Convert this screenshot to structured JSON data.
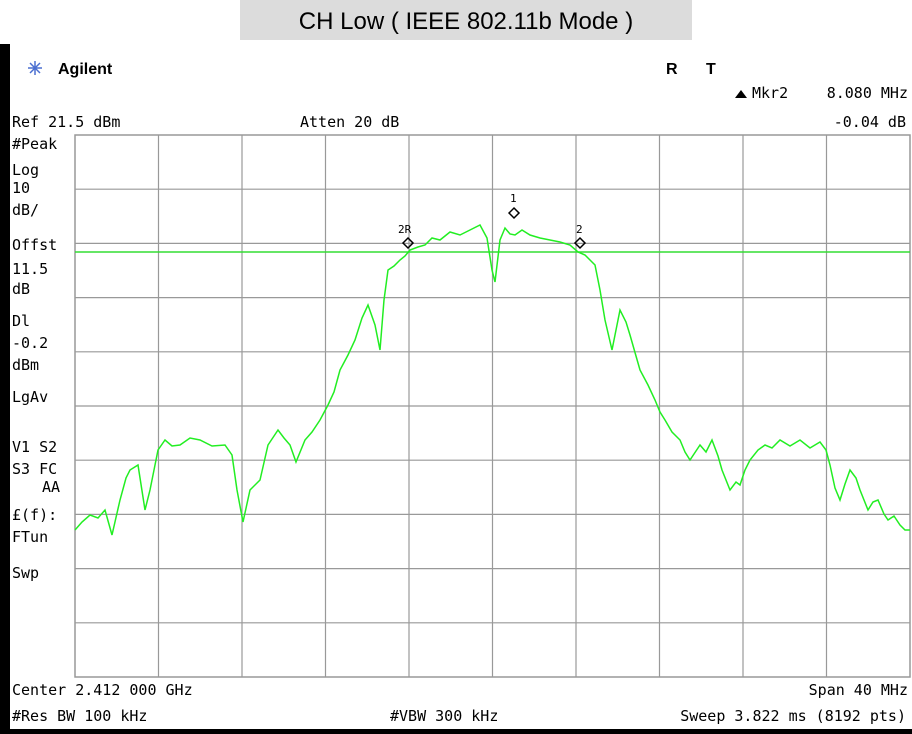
{
  "header": {
    "title": "CH Low ( IEEE 802.11b Mode )",
    "brand": "Agilent",
    "status": [
      "R",
      "T"
    ]
  },
  "marker_readout": {
    "name": "Mkr2",
    "freq": "8.080 MHz",
    "delta": "-0.04 dB"
  },
  "settings": {
    "ref": "Ref 21.5 dBm",
    "atten": "Atten 20 dB"
  },
  "side_panel": [
    "#Peak",
    "Log",
    "10",
    "dB/",
    "Offst",
    "11.5",
    "dB",
    "Dl",
    "-0.2",
    "dBm",
    "LgAv",
    "V1  S2",
    "S3  FC",
    "AA",
    "£(f):",
    "FTun",
    "Swp"
  ],
  "markers": [
    "2R",
    "1",
    "2"
  ],
  "footer": {
    "center": "Center 2.412 000 GHz",
    "span": "Span 40 MHz",
    "rbw": "#Res BW 100 kHz",
    "vbw": "#VBW 300 kHz",
    "sweep": "Sweep 3.822 ms (8192 pts)"
  }
}
